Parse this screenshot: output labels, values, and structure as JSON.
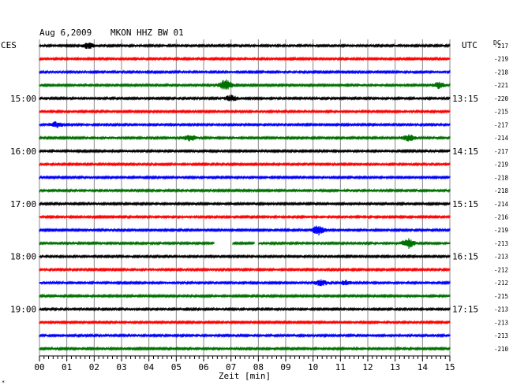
{
  "header": {
    "date": "Aug 6,2009",
    "station": "MKON HHZ BW 01"
  },
  "labels": {
    "left_timezone": "CES",
    "right_timezone": "UTC",
    "dc_header": "DC",
    "x_axis_label": "Zeit [min]",
    "corner_mark": "*"
  },
  "colors": {
    "trace_cycle": [
      "#000000",
      "#ff0000",
      "#0000ff",
      "#007000"
    ],
    "grid": "#888888",
    "axis": "#000000"
  },
  "chart_data": {
    "type": "line",
    "title": "Aug 6,2009   MKON HHZ BW 01",
    "xlabel": "Zeit [min]",
    "ylabel": "",
    "xlim": [
      0,
      15
    ],
    "x_ticks": [
      "00",
      "01",
      "02",
      "03",
      "04",
      "05",
      "06",
      "07",
      "08",
      "09",
      "10",
      "11",
      "12",
      "13",
      "14",
      "15"
    ],
    "grid": true,
    "trace_count": 24,
    "left_hour_labels": [
      {
        "row": 4,
        "label": "15:00"
      },
      {
        "row": 8,
        "label": "16:00"
      },
      {
        "row": 12,
        "label": "17:00"
      },
      {
        "row": 16,
        "label": "18:00"
      },
      {
        "row": 20,
        "label": "19:00"
      }
    ],
    "right_hour_labels": [
      {
        "row": 4,
        "label": "13:15"
      },
      {
        "row": 8,
        "label": "14:15"
      },
      {
        "row": 12,
        "label": "15:15"
      },
      {
        "row": 16,
        "label": "16:15"
      },
      {
        "row": 20,
        "label": "17:15"
      }
    ],
    "dc_offsets": [
      -217,
      -219,
      -218,
      -221,
      -220,
      -215,
      -217,
      -214,
      -217,
      -219,
      -218,
      -218,
      -214,
      -216,
      -219,
      -213,
      -213,
      -212,
      -212,
      -215,
      -213,
      -213,
      -213,
      -210
    ],
    "events": [
      {
        "row": 0,
        "minute": 1.8,
        "amplitude": 4
      },
      {
        "row": 3,
        "minute": 6.8,
        "amplitude": 7
      },
      {
        "row": 3,
        "minute": 14.6,
        "amplitude": 4
      },
      {
        "row": 4,
        "minute": 7.0,
        "amplitude": 4
      },
      {
        "row": 6,
        "minute": 0.6,
        "amplitude": 4
      },
      {
        "row": 7,
        "minute": 5.5,
        "amplitude": 4
      },
      {
        "row": 7,
        "minute": 13.5,
        "amplitude": 4
      },
      {
        "row": 14,
        "minute": 10.2,
        "amplitude": 6
      },
      {
        "row": 15,
        "minute": 13.5,
        "amplitude": 6
      },
      {
        "row": 18,
        "minute": 10.3,
        "amplitude": 4
      },
      {
        "row": 18,
        "minute": 11.2,
        "amplitude": 3
      }
    ],
    "gaps": [
      {
        "row": 15,
        "from_minute": 6.4,
        "to_minute": 7.05
      },
      {
        "row": 15,
        "from_minute": 7.85,
        "to_minute": 8.0
      }
    ]
  }
}
